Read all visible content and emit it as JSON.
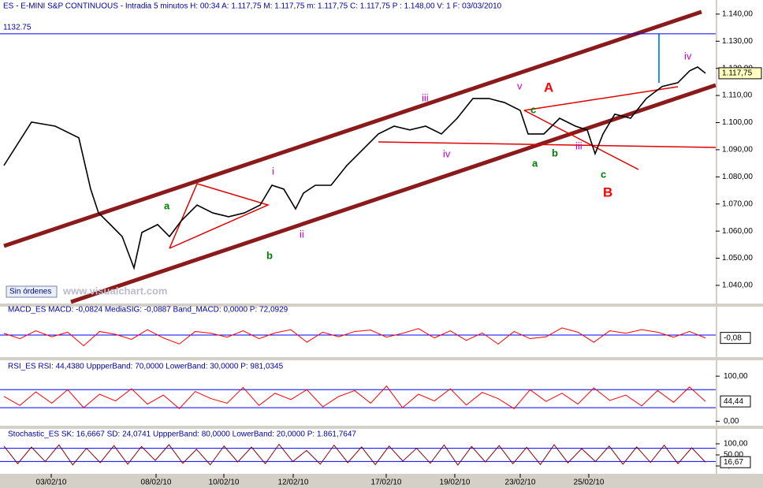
{
  "chart_data": [
    {
      "type": "line",
      "title": "ES - E-MINI S&P CONTINUOUS - Intradia 5 minutos H: 00:34 A: 1.117,75 M: 1.117,75 m: 1.117,75 C: 1.117,75 P : 1.148,00 V: 1 F: 03/03/2010",
      "x": [
        5,
        40,
        70,
        100,
        115,
        125,
        140,
        155,
        170,
        180,
        200,
        215,
        230,
        250,
        270,
        290,
        310,
        330,
        345,
        360,
        375,
        385,
        400,
        420,
        440,
        460,
        480,
        500,
        520,
        540,
        560,
        580,
        600,
        620,
        640,
        660,
        670,
        690,
        710,
        730,
        745,
        755,
        765,
        780,
        800,
        820,
        840,
        860,
        875,
        885,
        895
      ],
      "values": [
        1084.2,
        1100.2,
        1098.7,
        1094.4,
        1075.5,
        1066.7,
        1062.4,
        1058.0,
        1046.4,
        1059.5,
        1062.4,
        1058.0,
        1063.8,
        1069.6,
        1066.7,
        1065.3,
        1066.7,
        1069.6,
        1076.9,
        1075.5,
        1068.2,
        1074.0,
        1076.9,
        1076.9,
        1084.2,
        1090.0,
        1095.8,
        1098.7,
        1097.3,
        1098.7,
        1095.8,
        1101.6,
        1108.9,
        1108.9,
        1107.4,
        1104.5,
        1095.8,
        1095.8,
        1101.6,
        1098.7,
        1097.3,
        1088.5,
        1095.8,
        1103.1,
        1101.6,
        1108.9,
        1113.3,
        1114.7,
        1119.1,
        1120.5,
        1118.2
      ],
      "color": "#000000",
      "xlim": [
        0,
        908
      ],
      "ylim": [
        1033.3,
        1145.2
      ],
      "xticks": [
        {
          "value": 65,
          "label": "03/02/10"
        },
        {
          "value": 198,
          "label": "08/02/10"
        },
        {
          "value": 284,
          "label": "10/02/10"
        },
        {
          "value": 372,
          "label": "12/02/10"
        },
        {
          "value": 490,
          "label": "17/02/10"
        },
        {
          "value": 577,
          "label": "19/02/10"
        },
        {
          "value": 660,
          "label": "23/02/10"
        },
        {
          "value": 747,
          "label": "25/02/10"
        }
      ],
      "yticks": [
        {
          "value": 1140,
          "label": "1.140,00"
        },
        {
          "value": 1130,
          "label": "1.130,00"
        },
        {
          "value": 1120,
          "label": "1.120,00"
        },
        {
          "value": 1110,
          "label": "1.110,00"
        },
        {
          "value": 1100,
          "label": "1.100,00"
        },
        {
          "value": 1090,
          "label": "1.090,00"
        },
        {
          "value": 1080,
          "label": "1.080,00"
        },
        {
          "value": 1070,
          "label": "1.070,00"
        },
        {
          "value": 1060,
          "label": "1.060,00"
        },
        {
          "value": 1050,
          "label": "1.050,00"
        },
        {
          "value": 1040,
          "label": "1.040,00"
        }
      ],
      "reference_line": 1132.75,
      "current_label": "1.117,75",
      "watermark": "www.visualchart.com",
      "status": "Sin órdenes",
      "annotations": [
        {
          "text": "a",
          "color": "#008000"
        },
        {
          "text": "b",
          "color": "#008000"
        },
        {
          "text": "i",
          "color": "#cc00cc"
        },
        {
          "text": "ii",
          "color": "#cc00cc"
        },
        {
          "text": "iii",
          "color": "#cc00cc"
        },
        {
          "text": "iv",
          "color": "#cc00cc"
        },
        {
          "text": "v",
          "color": "#cc00cc"
        },
        {
          "text": "c",
          "color": "#008000"
        },
        {
          "text": "A",
          "color": "#ff0000"
        },
        {
          "text": "a",
          "color": "#008000"
        },
        {
          "text": "b",
          "color": "#008000"
        },
        {
          "text": "B",
          "color": "#ff0000"
        },
        {
          "text": "c",
          "color": "#008000"
        },
        {
          "text": "iii",
          "color": "#cc00cc"
        },
        {
          "text": "iv",
          "color": "#cc00cc"
        }
      ]
    },
    {
      "type": "line",
      "title": "MACD_ES MACD: -0,0824 MediaSIG: -0,0887 Band_MACD: 0,0000 P: 72,0929",
      "color": "#ff0000",
      "ylim": [
        -0.55,
        0.55
      ],
      "values": [
        0.05,
        -0.1,
        0.12,
        -0.05,
        0.08,
        -0.3,
        0.1,
        0.02,
        -0.12,
        0.15,
        -0.08,
        -0.25,
        0.1,
        0.05,
        -0.06,
        0.12,
        -0.1,
        0.06,
        0.15,
        -0.2,
        0.08,
        -0.05,
        0.1,
        0.14,
        -0.06,
        0.05,
        0.18,
        -0.08,
        0.12,
        -0.15,
        0.06,
        -0.25,
        0.1,
        -0.1,
        -0.05,
        0.2,
        0.08,
        -0.2,
        0.12,
        0.05,
        0.15,
        0.08,
        -0.06,
        0.1,
        -0.08
      ],
      "current_label": "-0,08"
    },
    {
      "type": "line",
      "title": "RSI_ES RSI: 44,4380 UppperBand: 70,0000 LowerBand: 30,0000 P: 981,0345",
      "color": "#ff0000",
      "ylim": [
        -10,
        130
      ],
      "bands": [
        70,
        30
      ],
      "yticks": [
        {
          "value": 100,
          "label": "100,00"
        },
        {
          "value": 0,
          "label": "0,00"
        }
      ],
      "values": [
        55,
        35,
        65,
        40,
        70,
        30,
        60,
        45,
        72,
        38,
        58,
        28,
        66,
        50,
        40,
        75,
        35,
        62,
        48,
        70,
        32,
        55,
        68,
        40,
        78,
        30,
        60,
        45,
        72,
        36,
        64,
        50,
        28,
        70,
        44,
        62,
        38,
        74,
        46,
        58,
        34,
        68,
        42,
        76,
        44
      ],
      "current_label": "44,44"
    },
    {
      "type": "line",
      "title": "Stochastic_ES SK: 16,6667 SD: 24,0741 UppperBand: 80,0000 LowerBand: 20,0000 P: 1.861,7647",
      "color": "#8b0000",
      "ylim": [
        -32,
        164
      ],
      "bands": [
        80,
        20
      ],
      "yticks": [
        {
          "value": 100,
          "label": "100,00"
        },
        {
          "value": 50,
          "label": "50,00"
        },
        {
          "value": 0,
          "label": "0,00"
        }
      ],
      "values": [
        90,
        10,
        85,
        20,
        95,
        5,
        80,
        15,
        92,
        8,
        88,
        25,
        96,
        12,
        75,
        5,
        90,
        18,
        85,
        10,
        98,
        20,
        70,
        8,
        94,
        15,
        86,
        6,
        90,
        22,
        80,
        12,
        95,
        4,
        88,
        18,
        92,
        10,
        84,
        6,
        96,
        14,
        78,
        20,
        90,
        8,
        86,
        16,
        94,
        10,
        82,
        17
      ],
      "current_label": "16,67"
    }
  ]
}
